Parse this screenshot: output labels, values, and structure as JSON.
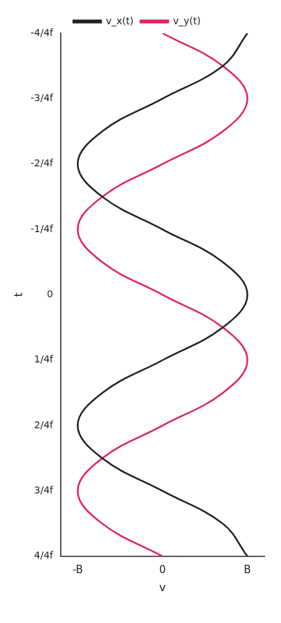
{
  "chart_data": {
    "type": "line",
    "x_label": "t",
    "y_label": "v",
    "x": [
      -1,
      -0.875,
      -0.75,
      -0.625,
      -0.5,
      -0.375,
      -0.25,
      -0.125,
      0,
      0.125,
      0.25,
      0.375,
      0.5,
      0.625,
      0.75,
      0.875,
      1
    ],
    "series": [
      {
        "name": "v_x(t)",
        "color": "#222222",
        "values": [
          1,
          0.71,
          0,
          -0.71,
          -1,
          -0.71,
          0,
          0.71,
          1,
          0.71,
          0,
          -0.71,
          -1,
          -0.71,
          0,
          0.71,
          1
        ]
      },
      {
        "name": "v_y(t)",
        "color": "#e0245e",
        "values": [
          0,
          0.71,
          1,
          0.71,
          0,
          -0.71,
          -1,
          -0.71,
          0,
          0.71,
          1,
          0.71,
          0,
          -0.71,
          -1,
          -0.71,
          0
        ]
      }
    ],
    "xlim": [
      -1,
      1
    ],
    "xticks": [
      {
        "value": -1,
        "label": "-4/4f"
      },
      {
        "value": -0.75,
        "label": "-3/4f"
      },
      {
        "value": -0.5,
        "label": "-2/4f"
      },
      {
        "value": -0.25,
        "label": "-1/4f"
      },
      0,
      {
        "value": 0.25,
        "label": "1/4f"
      },
      {
        "value": 0.5,
        "label": "2/4f"
      },
      {
        "value": 0.75,
        "label": "3/4f"
      },
      {
        "value": 1,
        "label": "4/4f"
      }
    ],
    "ylim": [
      -1.2,
      1.2
    ],
    "yticks": [
      {
        "value": -1,
        "label": "-B"
      },
      0,
      {
        "value": 1,
        "label": "B"
      }
    ],
    "grid": false,
    "legend": "top"
  }
}
